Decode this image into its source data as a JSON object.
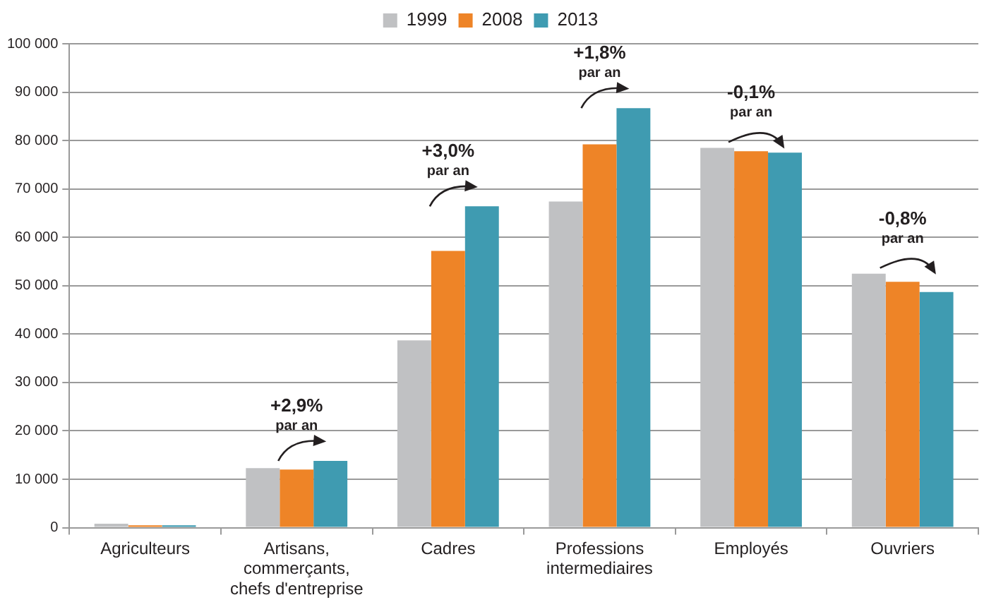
{
  "chart_data": {
    "type": "bar",
    "categories": [
      "Agriculteurs",
      "Artisans, commerçants, chefs d'entreprise",
      "Cadres",
      "Professions intermediaires",
      "Employés",
      "Ouvriers"
    ],
    "series": [
      {
        "name": "1999",
        "color": "#c0c1c3",
        "values": [
          800,
          12300,
          38700,
          67400,
          78500,
          52500
        ]
      },
      {
        "name": "2008",
        "color": "#ee8427",
        "values": [
          500,
          12000,
          57200,
          79200,
          77800,
          50800
        ]
      },
      {
        "name": "2013",
        "color": "#3f9bb1",
        "values": [
          500,
          13800,
          66400,
          86700,
          77500,
          48700
        ]
      }
    ],
    "ylim": [
      0,
      100000
    ],
    "yticks": [
      {
        "value": 0,
        "label": "0"
      },
      {
        "value": 10000,
        "label": "10 000"
      },
      {
        "value": 20000,
        "label": "20 000"
      },
      {
        "value": 30000,
        "label": "30 000"
      },
      {
        "value": 40000,
        "label": "40 000"
      },
      {
        "value": 50000,
        "label": "50 000"
      },
      {
        "value": 60000,
        "label": "60 000"
      },
      {
        "value": 70000,
        "label": "70 000"
      },
      {
        "value": 80000,
        "label": "80 000"
      },
      {
        "value": 90000,
        "label": "90 000"
      },
      {
        "value": 100000,
        "label": "100 000"
      }
    ],
    "grid": "y",
    "legend": "top",
    "annotations": [
      "+2,9%\npar an",
      "+3,0%\npar an",
      "+1,8%\npar an",
      "-0,1%\npar an",
      "-0,8%\npar an"
    ]
  }
}
